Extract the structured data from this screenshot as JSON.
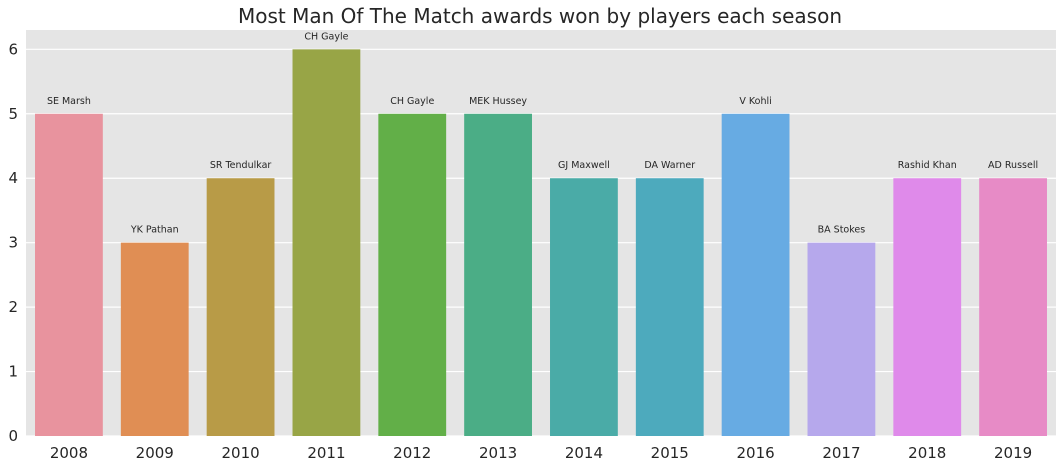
{
  "chart_data": {
    "type": "bar",
    "title": "Most Man Of The Match awards won by players each season",
    "xlabel": "",
    "ylabel": "",
    "categories": [
      "2008",
      "2009",
      "2010",
      "2011",
      "2012",
      "2013",
      "2014",
      "2015",
      "2016",
      "2017",
      "2018",
      "2019"
    ],
    "values": [
      5,
      3,
      4,
      6,
      5,
      5,
      4,
      4,
      5,
      3,
      4,
      4
    ],
    "labels": [
      "SE Marsh",
      "YK Pathan",
      "SR Tendulkar",
      "CH Gayle",
      "CH Gayle",
      "MEK Hussey",
      "GJ Maxwell",
      "DA Warner",
      "V Kohli",
      "BA Stokes",
      "Rashid Khan",
      "AD Russell"
    ],
    "colors": [
      "#E8939E",
      "#E08E54",
      "#B89B47",
      "#98A546",
      "#62AF48",
      "#4BAD86",
      "#4AABA7",
      "#4DAABD",
      "#67ABE3",
      "#B6A8EC",
      "#DF8AEA",
      "#E78BC6"
    ],
    "y_ticks": [
      0,
      1,
      2,
      3,
      4,
      5,
      6
    ],
    "ylim": [
      0,
      6.3
    ],
    "grid": true,
    "background": "#E5E5E5",
    "grid_color": "#FFFFFF"
  }
}
